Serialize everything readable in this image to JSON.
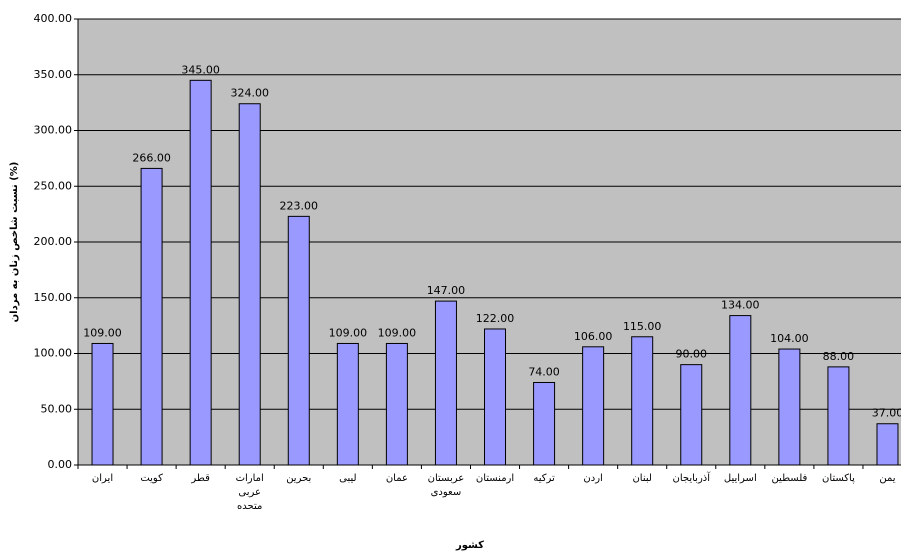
{
  "chart_data": {
    "type": "bar",
    "x_label": "کشور",
    "y_label": "نسبت شاخص زنان به مردان (%)",
    "categories": [
      "ایران",
      "کویت",
      "قطر",
      "امارات عربی متحده",
      "بحرین",
      "لیبی",
      "عمان",
      "عربستان سعودی",
      "ارمنستان",
      "ترکیه",
      "اردن",
      "لبنان",
      "آذربایجان",
      "اسراییل",
      "فلسطین",
      "پاکستان",
      "یمن"
    ],
    "values": [
      109,
      266,
      345,
      324,
      223,
      109,
      109,
      147,
      122,
      74,
      106,
      115,
      90,
      134,
      104,
      88,
      37
    ],
    "value_labels": [
      "109.00",
      "266.00",
      "345.00",
      "324.00",
      "223.00",
      "109.00",
      "109.00",
      "147.00",
      "122.00",
      "74.00",
      "106.00",
      "115.00",
      "90.00",
      "134.00",
      "104.00",
      "88.00",
      "37.00"
    ],
    "color": "#9999ff",
    "ylim": [
      0,
      400
    ],
    "yticks": [
      {
        "value": 0,
        "label": "0.00"
      },
      {
        "value": 50,
        "label": "50.00"
      },
      {
        "value": 100,
        "label": "100.00"
      },
      {
        "value": 150,
        "label": "150.00"
      },
      {
        "value": 200,
        "label": "200.00"
      },
      {
        "value": 250,
        "label": "250.00"
      },
      {
        "value": 300,
        "label": "300.00"
      },
      {
        "value": 350,
        "label": "350.00"
      },
      {
        "value": 400,
        "label": "400.00"
      }
    ],
    "grid": true
  }
}
